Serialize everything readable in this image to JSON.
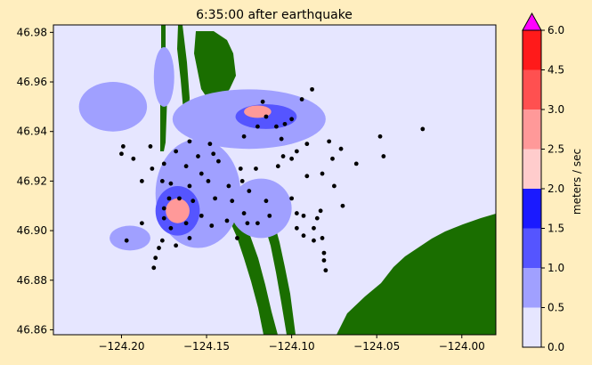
{
  "chart_data": {
    "type": "heatmap",
    "title": "6:35:00 after earthquake",
    "xlim": [
      -124.24,
      -123.98
    ],
    "ylim": [
      46.858,
      46.983
    ],
    "x_ticks": [
      -124.2,
      -124.15,
      -124.1,
      -124.05,
      -124.0
    ],
    "x_tick_labels": [
      "−124.20",
      "−124.15",
      "−124.10",
      "−124.05",
      "−124.00"
    ],
    "y_ticks": [
      46.86,
      46.88,
      46.9,
      46.92,
      46.94,
      46.96,
      46.98
    ],
    "y_tick_labels": [
      "46.86",
      "46.88",
      "46.90",
      "46.92",
      "46.94",
      "46.96",
      "46.98"
    ],
    "colorbar": {
      "label": "meters / sec",
      "levels": [
        0.0,
        0.5,
        1.0,
        1.5,
        2.0,
        2.5,
        3.0,
        4.5,
        6.0
      ],
      "level_labels": [
        "0.0",
        "0.5",
        "1.0",
        "1.5",
        "2.0",
        "2.5",
        "3.0",
        "4.5",
        "6.0"
      ],
      "colors": [
        "#e6e6ff",
        "#a0a0ff",
        "#5555ff",
        "#1a1aff",
        "#ffcccc",
        "#ff9999",
        "#ff5050",
        "#ff1a1a"
      ],
      "extend_color": "#ff00ff",
      "extend": "max"
    },
    "land_color": "#1a6e00",
    "water_color": "#e6e6ff",
    "fast_regions": [
      {
        "x": -124.155,
        "y": 46.915,
        "rx": 0.025,
        "ry": 0.022,
        "level": 0.75
      },
      {
        "x": -124.167,
        "y": 46.908,
        "rx": 0.013,
        "ry": 0.01,
        "level": 1.25
      },
      {
        "x": -124.167,
        "y": 46.908,
        "rx": 0.007,
        "ry": 0.005,
        "level": 2.5
      },
      {
        "x": -124.195,
        "y": 46.897,
        "rx": 0.012,
        "ry": 0.005,
        "level": 0.75
      },
      {
        "x": -124.118,
        "y": 46.909,
        "rx": 0.018,
        "ry": 0.012,
        "level": 0.75
      },
      {
        "x": -124.125,
        "y": 46.945,
        "rx": 0.045,
        "ry": 0.012,
        "level": 0.75
      },
      {
        "x": -124.115,
        "y": 46.946,
        "rx": 0.018,
        "ry": 0.005,
        "level": 1.25
      },
      {
        "x": -124.12,
        "y": 46.948,
        "rx": 0.008,
        "ry": 0.0025,
        "level": 2.5
      },
      {
        "x": -124.175,
        "y": 46.962,
        "rx": 0.006,
        "ry": 0.012,
        "level": 0.75
      },
      {
        "x": -124.205,
        "y": 46.95,
        "rx": 0.02,
        "ry": 0.01,
        "level": 0.75
      }
    ],
    "gauges": [
      [
        -124.199,
        46.934
      ],
      [
        -124.2,
        46.931
      ],
      [
        -124.193,
        46.929
      ],
      [
        -124.183,
        46.934
      ],
      [
        -124.175,
        46.927
      ],
      [
        -124.182,
        46.925
      ],
      [
        -124.188,
        46.92
      ],
      [
        -124.176,
        46.92
      ],
      [
        -124.168,
        46.932
      ],
      [
        -124.162,
        46.926
      ],
      [
        -124.155,
        46.93
      ],
      [
        -124.146,
        46.931
      ],
      [
        -124.148,
        46.935
      ],
      [
        -124.153,
        46.923
      ],
      [
        -124.158,
        46.912
      ],
      [
        -124.16,
        46.918
      ],
      [
        -124.166,
        46.913
      ],
      [
        -124.171,
        46.919
      ],
      [
        -124.172,
        46.913
      ],
      [
        -124.175,
        46.909
      ],
      [
        -124.175,
        46.905
      ],
      [
        -124.171,
        46.901
      ],
      [
        -124.162,
        46.903
      ],
      [
        -124.16,
        46.897
      ],
      [
        -124.168,
        46.894
      ],
      [
        -124.176,
        46.896
      ],
      [
        -124.178,
        46.893
      ],
      [
        -124.18,
        46.889
      ],
      [
        -124.181,
        46.885
      ],
      [
        -124.188,
        46.903
      ],
      [
        -124.197,
        46.896
      ],
      [
        -124.153,
        46.906
      ],
      [
        -124.145,
        46.913
      ],
      [
        -124.137,
        46.918
      ],
      [
        -124.135,
        46.912
      ],
      [
        -124.129,
        46.92
      ],
      [
        -124.13,
        46.925
      ],
      [
        -124.121,
        46.925
      ],
      [
        -124.125,
        46.916
      ],
      [
        -124.115,
        46.912
      ],
      [
        -124.113,
        46.906
      ],
      [
        -124.12,
        46.903
      ],
      [
        -124.126,
        46.903
      ],
      [
        -124.1,
        46.913
      ],
      [
        -124.097,
        46.907
      ],
      [
        -124.093,
        46.906
      ],
      [
        -124.097,
        46.901
      ],
      [
        -124.093,
        46.898
      ],
      [
        -124.087,
        46.901
      ],
      [
        -124.087,
        46.896
      ],
      [
        -124.082,
        46.897
      ],
      [
        -124.081,
        46.891
      ],
      [
        -124.08,
        46.884
      ],
      [
        -124.081,
        46.888
      ],
      [
        -124.07,
        46.91
      ],
      [
        -124.075,
        46.918
      ],
      [
        -124.082,
        46.923
      ],
      [
        -124.091,
        46.922
      ],
      [
        -124.1,
        46.929
      ],
      [
        -124.108,
        46.926
      ],
      [
        -124.105,
        46.93
      ],
      [
        -124.097,
        46.932
      ],
      [
        -124.091,
        46.935
      ],
      [
        -124.076,
        46.929
      ],
      [
        -124.071,
        46.933
      ],
      [
        -124.062,
        46.927
      ],
      [
        -124.109,
        46.942
      ],
      [
        -124.106,
        46.937
      ],
      [
        -124.1,
        46.945
      ],
      [
        -124.094,
        46.953
      ],
      [
        -124.104,
        46.943
      ],
      [
        -124.115,
        46.946
      ],
      [
        -124.12,
        46.942
      ],
      [
        -124.128,
        46.938
      ],
      [
        -124.117,
        46.952
      ],
      [
        -124.088,
        46.957
      ],
      [
        -124.078,
        46.936
      ],
      [
        -124.048,
        46.938
      ],
      [
        -124.046,
        46.93
      ],
      [
        -124.023,
        46.941
      ],
      [
        -124.149,
        46.92
      ],
      [
        -124.143,
        46.928
      ],
      [
        -124.16,
        46.936
      ],
      [
        -124.147,
        46.902
      ],
      [
        -124.138,
        46.904
      ],
      [
        -124.132,
        46.897
      ],
      [
        -124.128,
        46.907
      ],
      [
        -124.083,
        46.908
      ],
      [
        -124.085,
        46.905
      ]
    ]
  }
}
